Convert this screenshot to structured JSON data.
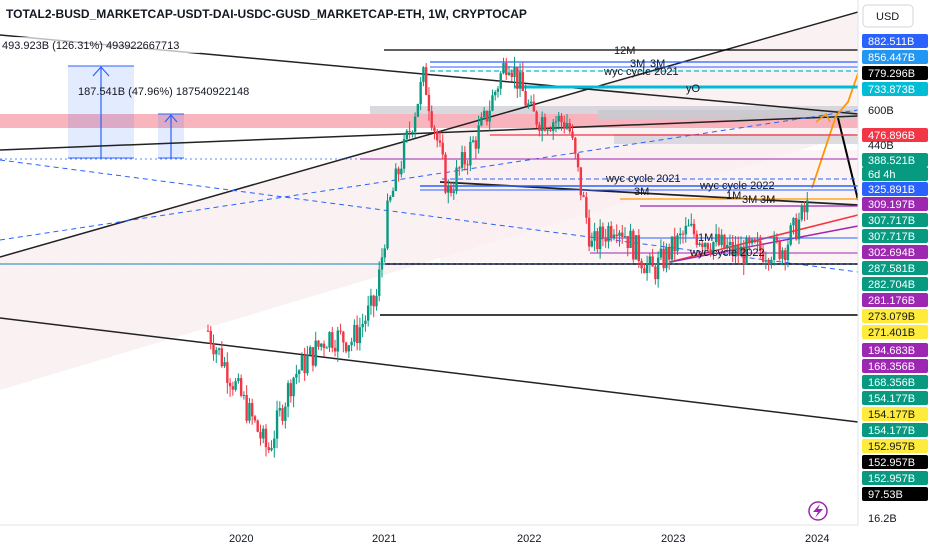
{
  "header": {
    "title": "TOTAL2-BUSD_MARKETCAP-USDT-DAI-USDC-GUSD_MARKETCAP-ETH, 1W, CRYPTOCAP",
    "currency": "USD"
  },
  "measures": [
    {
      "text": "493.923B (126.31%) 493922667713"
    },
    {
      "text": "187.541B (47.96%) 187540922148"
    }
  ],
  "annotations": {
    "m12": "12M",
    "m3a": "3M",
    "m3b": "3M",
    "wyc2021_top": "wyc cycle 2021",
    "yo": "yO",
    "wyc2021_mid": "wyc cycle 2021",
    "wyc2022_a": "wyc cycle 2022",
    "m3c": "3M",
    "m1a": "1M",
    "m3d": "3M",
    "m3e": "3M",
    "m1b": "1M",
    "wyc2022_b": "wyc cycle 2022"
  },
  "chart_data": {
    "type": "candlestick",
    "timeframe": "1W",
    "x_ticks": [
      "2020",
      "2021",
      "2022",
      "2023",
      "2024"
    ],
    "y_range": [
      16.2,
      1000
    ],
    "price_labels": [
      {
        "text": "882.511B",
        "bg": "#2962ff",
        "fg": "#ffffff"
      },
      {
        "text": "856.447B",
        "bg": "#2196f3",
        "fg": "#ffffff"
      },
      {
        "text": "779.296B",
        "bg": "#000000",
        "fg": "#ffffff"
      },
      {
        "text": "733.873B",
        "bg": "#00bcd4",
        "fg": "#ffffff"
      },
      {
        "text": "600B",
        "bg": "#ffffff",
        "fg": "#131722"
      },
      {
        "text": "476.896B",
        "bg": "#f23645",
        "fg": "#ffffff"
      },
      {
        "text": "440B",
        "bg": "#ffffff",
        "fg": "#131722"
      },
      {
        "text": "388.521B",
        "bg": "#089981",
        "fg": "#ffffff"
      },
      {
        "text": "6d 4h",
        "bg": "#089981",
        "fg": "#ffffff"
      },
      {
        "text": "325.891B",
        "bg": "#2962ff",
        "fg": "#ffffff"
      },
      {
        "text": "309.197B",
        "bg": "#9c27b0",
        "fg": "#ffffff"
      },
      {
        "text": "307.717B",
        "bg": "#089981",
        "fg": "#ffffff"
      },
      {
        "text": "307.717B",
        "bg": "#089981",
        "fg": "#ffffff"
      },
      {
        "text": "302.694B",
        "bg": "#9c27b0",
        "fg": "#ffffff"
      },
      {
        "text": "287.581B",
        "bg": "#089981",
        "fg": "#ffffff"
      },
      {
        "text": "282.704B",
        "bg": "#089981",
        "fg": "#ffffff"
      },
      {
        "text": "281.176B",
        "bg": "#9c27b0",
        "fg": "#ffffff"
      },
      {
        "text": "273.079B",
        "bg": "#ffeb3b",
        "fg": "#131722"
      },
      {
        "text": "271.401B",
        "bg": "#ffeb3b",
        "fg": "#131722"
      },
      {
        "text": "194.683B",
        "bg": "#9c27b0",
        "fg": "#ffffff"
      },
      {
        "text": "168.356B",
        "bg": "#9c27b0",
        "fg": "#ffffff"
      },
      {
        "text": "168.356B",
        "bg": "#089981",
        "fg": "#ffffff"
      },
      {
        "text": "154.177B",
        "bg": "#089981",
        "fg": "#ffffff"
      },
      {
        "text": "154.177B",
        "bg": "#ffeb3b",
        "fg": "#131722"
      },
      {
        "text": "154.177B",
        "bg": "#089981",
        "fg": "#ffffff"
      },
      {
        "text": "152.957B",
        "bg": "#ffeb3b",
        "fg": "#131722"
      },
      {
        "text": "152.957B",
        "bg": "#000000",
        "fg": "#ffffff"
      },
      {
        "text": "152.957B",
        "bg": "#089981",
        "fg": "#ffffff"
      },
      {
        "text": "97.53B",
        "bg": "#000000",
        "fg": "#ffffff"
      },
      {
        "text": "16.2B",
        "bg": "#ffffff",
        "fg": "#131722"
      }
    ],
    "ohlc_anchors": [
      {
        "t": "2019-10",
        "close": 195
      },
      {
        "t": "2020-03",
        "close": 100
      },
      {
        "t": "2020-05",
        "close": 150
      },
      {
        "t": "2020-08",
        "close": 190
      },
      {
        "t": "2020-10",
        "close": 185
      },
      {
        "t": "2020-12",
        "close": 230
      },
      {
        "t": "2021-01",
        "close": 380
      },
      {
        "t": "2021-04",
        "close": 800
      },
      {
        "t": "2021-06",
        "close": 420
      },
      {
        "t": "2021-09",
        "close": 620
      },
      {
        "t": "2021-11",
        "close": 900
      },
      {
        "t": "2022-01",
        "close": 640
      },
      {
        "t": "2022-04",
        "close": 620
      },
      {
        "t": "2022-06",
        "close": 310
      },
      {
        "t": "2022-08",
        "close": 360
      },
      {
        "t": "2022-11",
        "close": 270
      },
      {
        "t": "2023-02",
        "close": 340
      },
      {
        "t": "2023-06",
        "close": 300
      },
      {
        "t": "2023-10",
        "close": 310
      },
      {
        "t": "2023-12",
        "close": 388
      }
    ],
    "colors": {
      "up": "#089981",
      "down": "#f23645"
    }
  },
  "icons": {
    "flash": "flash-icon"
  }
}
